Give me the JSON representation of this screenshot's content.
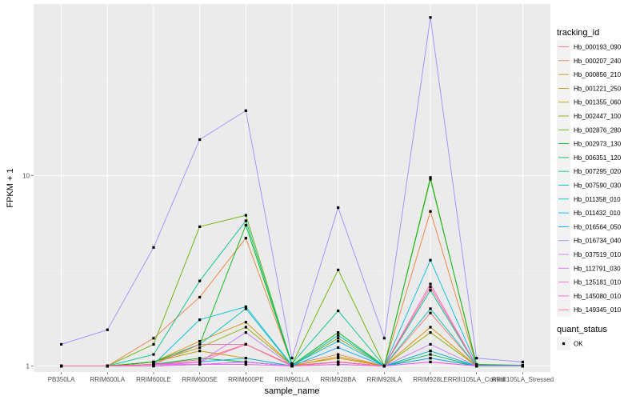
{
  "chart_data": {
    "type": "line",
    "title": "",
    "xlabel": "sample_name",
    "ylabel": "FPKM + 1",
    "y_scale": "log10",
    "ylim": [
      0.93,
      80
    ],
    "y_ticks": [
      1,
      10
    ],
    "y_tick_labels": [
      "1",
      "10"
    ],
    "grid": true,
    "legend_position": "right",
    "categories": [
      "PB350LA",
      "RRIM600LA",
      "RRIM600LE",
      "RRIM600SE",
      "RRIM600PE",
      "RRIM901LA",
      "RRIM928BA",
      "RRIM928LA",
      "RRIM928LE",
      "RRIII105LA_Control",
      "RRIII105LA_Stressed"
    ],
    "legend_title": "tracking_id",
    "series": [
      {
        "name": "Hb_000193_090",
        "color": "#F8766D",
        "values": [
          1.0,
          1.0,
          1.02,
          1.08,
          1.3,
          1.01,
          1.05,
          1.0,
          1.9,
          1.0,
          1.0
        ]
      },
      {
        "name": "Hb_000207_240",
        "color": "#EC8239",
        "values": [
          1.0,
          1.0,
          1.4,
          2.3,
          4.7,
          1.02,
          1.15,
          1.0,
          6.5,
          1.01,
          1.0
        ]
      },
      {
        "name": "Hb_000856_210",
        "color": "#DB8E00",
        "values": [
          1.0,
          1.0,
          1.05,
          1.35,
          1.7,
          1.01,
          1.1,
          1.0,
          1.6,
          1.0,
          1.0
        ]
      },
      {
        "name": "Hb_001221_250",
        "color": "#C79800",
        "values": [
          1.0,
          1.0,
          1.05,
          1.2,
          1.1,
          1.0,
          1.12,
          1.0,
          1.2,
          1.0,
          1.0
        ]
      },
      {
        "name": "Hb_001355_060",
        "color": "#AEA200",
        "values": [
          1.0,
          1.0,
          1.02,
          1.1,
          1.05,
          1.0,
          1.05,
          1.0,
          1.1,
          1.0,
          1.0
        ]
      },
      {
        "name": "Hb_002447_100",
        "color": "#8FAA00",
        "values": [
          1.0,
          1.0,
          1.05,
          1.25,
          1.6,
          1.01,
          1.4,
          1.0,
          1.5,
          1.0,
          1.0
        ]
      },
      {
        "name": "Hb_002876_280",
        "color": "#64B200",
        "values": [
          1.0,
          1.0,
          1.3,
          5.4,
          6.2,
          1.02,
          3.2,
          1.0,
          9.8,
          1.0,
          1.0
        ]
      },
      {
        "name": "Hb_002973_130",
        "color": "#00B813",
        "values": [
          1.0,
          1.0,
          1.05,
          1.3,
          5.5,
          1.01,
          1.5,
          1.0,
          9.6,
          1.02,
          1.01
        ]
      },
      {
        "name": "Hb_006351_120",
        "color": "#00BD5C",
        "values": [
          1.0,
          1.0,
          1.02,
          1.1,
          1.05,
          1.0,
          1.05,
          1.0,
          1.15,
          1.0,
          1.0
        ]
      },
      {
        "name": "Hb_007295_020",
        "color": "#00C08E",
        "values": [
          1.0,
          1.0,
          1.15,
          2.8,
          5.8,
          1.03,
          1.95,
          1.0,
          2.5,
          1.0,
          1.0
        ]
      },
      {
        "name": "Hb_007590_030",
        "color": "#00C1B7",
        "values": [
          1.0,
          1.0,
          1.02,
          1.3,
          2.0,
          1.0,
          1.45,
          1.0,
          2.0,
          1.0,
          1.0
        ]
      },
      {
        "name": "Hb_011358_010",
        "color": "#00BDDC",
        "values": [
          1.0,
          1.0,
          1.02,
          1.75,
          2.05,
          1.01,
          1.35,
          1.0,
          3.6,
          1.01,
          1.01
        ]
      },
      {
        "name": "Hb_011432_010",
        "color": "#00B4EF",
        "values": [
          1.0,
          1.0,
          1.02,
          1.05,
          1.1,
          1.0,
          1.05,
          1.0,
          1.2,
          1.0,
          1.0
        ]
      },
      {
        "name": "Hb_016564_050",
        "color": "#00A5FF",
        "values": [
          1.0,
          1.0,
          1.0,
          1.02,
          1.05,
          1.0,
          1.25,
          1.0,
          1.1,
          1.0,
          1.0
        ]
      },
      {
        "name": "Hb_016734_040",
        "color": "#9C8DFF",
        "values": [
          1.3,
          1.55,
          4.2,
          15.5,
          22.0,
          1.1,
          6.8,
          1.4,
          68.0,
          1.1,
          1.05
        ]
      },
      {
        "name": "Hb_037519_010",
        "color": "#C77CFF",
        "values": [
          1.0,
          1.0,
          1.0,
          1.05,
          1.5,
          1.0,
          1.02,
          1.0,
          1.3,
          1.0,
          1.0
        ]
      },
      {
        "name": "Hb_112791_030",
        "color": "#E36EF6",
        "values": [
          1.0,
          1.0,
          1.02,
          1.02,
          1.05,
          1.0,
          1.02,
          1.0,
          1.05,
          1.0,
          1.0
        ]
      },
      {
        "name": "Hb_125181_010",
        "color": "#F564E3",
        "values": [
          1.0,
          1.0,
          1.0,
          1.02,
          1.02,
          1.0,
          1.02,
          1.0,
          1.05,
          1.0,
          1.0
        ]
      },
      {
        "name": "Hb_145080_010",
        "color": "#FF61C3",
        "values": [
          1.0,
          1.0,
          1.02,
          1.05,
          1.3,
          1.0,
          1.05,
          1.0,
          2.7,
          1.0,
          1.0
        ]
      },
      {
        "name": "Hb_149345_010",
        "color": "#FF6A98",
        "values": [
          1.0,
          1.0,
          1.02,
          1.3,
          1.3,
          1.0,
          1.05,
          1.0,
          2.6,
          1.0,
          1.0
        ]
      }
    ],
    "shape_legend_title": "quant_status",
    "shape_legend_items": [
      "OK"
    ]
  }
}
